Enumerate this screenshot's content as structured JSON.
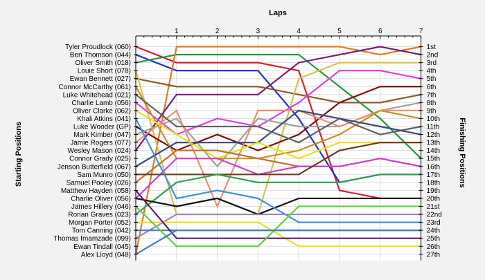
{
  "chart_data": {
    "type": "line",
    "title": "",
    "xlabel": "Laps",
    "ylabel_left": "Starting Positions",
    "ylabel_right": "Finishing Positions",
    "x": [
      0,
      1,
      2,
      3,
      4,
      5,
      6,
      7
    ],
    "x_tick_labels": [
      "1",
      "2",
      "3",
      "4",
      "5",
      "6",
      "7"
    ],
    "ylim": [
      1,
      27
    ],
    "y_inverted": true,
    "grid": true,
    "start_labels": [
      "Tyler Proudlock (060)",
      "Ben Thomson (044)",
      "Oliver Smith (018)",
      "Louie Short (078)",
      "Ewan Bennett (027)",
      "Connor McCarthy (061)",
      "Luke Whitehead (021)",
      "Charlie Lamb (056)",
      "Oliver Clarke (062)",
      "Khali Atkins (041)",
      "Luke Wooder (GP)",
      "Mark Kimber (047)",
      "Jamie Rogers (077)",
      "Wesley Mason (024)",
      "Connor Grady (025)",
      "Jenson Butterfield (067)",
      "Sam Munro (050)",
      "Samuel Pooley (026)",
      "Matthew Hayden (058)",
      "Charlie Oliver (056)",
      "James Hillery (046)",
      "Ronan Graves (023)",
      "Morgan Porter (052)",
      "Tom Canning (042)",
      "Thomas Imamzade (099)",
      "Ewan Tindall (045)",
      "Alex Lloyd (048)"
    ],
    "finish_labels": [
      "1st",
      "2nd",
      "3rd",
      "4th",
      "5th",
      "6th",
      "7th",
      "8th",
      "9th",
      "10th",
      "11th",
      "12th",
      "13th",
      "14th",
      "15th",
      "16th",
      "17th",
      "18th",
      "19th",
      "20th",
      "21st",
      "22nd",
      "23rd",
      "24th",
      "25th",
      "26th",
      "27th"
    ],
    "series": [
      {
        "color": "#d4202a",
        "positions": [
          1,
          3,
          3,
          3,
          4,
          19,
          20,
          20
        ]
      },
      {
        "color": "#2030c8",
        "positions": [
          2,
          4,
          4,
          4,
          10,
          18,
          17,
          17
        ]
      },
      {
        "color": "#1f9a3a",
        "positions": [
          3,
          2,
          2,
          2,
          2,
          6,
          10,
          15
        ]
      },
      {
        "color": "#e07a20",
        "positions": [
          27,
          1,
          1,
          1,
          1,
          1,
          2,
          1
        ]
      },
      {
        "color": "#7a1a7a",
        "positions": [
          14,
          7,
          7,
          7,
          3,
          2,
          1,
          2
        ]
      },
      {
        "color": "#8a5a2a",
        "positions": [
          5,
          6,
          6,
          6,
          7,
          8,
          8,
          7
        ]
      },
      {
        "color": "#d8c050",
        "positions": [
          4,
          22,
          22,
          22,
          5,
          3,
          3,
          3
        ]
      },
      {
        "color": "#e040e0",
        "positions": [
          8,
          12,
          10,
          11,
          8,
          4,
          4,
          5
        ]
      },
      {
        "color": "#7a1010",
        "positions": [
          11,
          14,
          12,
          14,
          12,
          8,
          6,
          6
        ]
      },
      {
        "color": "#a0a0a0",
        "positions": [
          12,
          10,
          16,
          10,
          11,
          11,
          9,
          8
        ]
      },
      {
        "color": "#e89070",
        "positions": [
          13,
          9,
          21,
          9,
          9,
          11,
          9,
          9
        ]
      },
      {
        "color": "#c89020",
        "positions": [
          6,
          15,
          15,
          15,
          14,
          12,
          9,
          10
        ]
      },
      {
        "color": "#606060",
        "positions": [
          7,
          11,
          11,
          11,
          13,
          10,
          12,
          11
        ]
      },
      {
        "color": "#3a4a7a",
        "positions": [
          16,
          13,
          13,
          13,
          9,
          10,
          11,
          12
        ]
      },
      {
        "color": "#e8e020",
        "positions": [
          9,
          12,
          15,
          13,
          15,
          13,
          13,
          13
        ]
      },
      {
        "color": "#c07030",
        "positions": [
          18,
          14,
          14,
          15,
          16,
          16,
          15,
          16
        ]
      },
      {
        "color": "#d040d0",
        "positions": [
          20,
          15,
          15,
          17,
          16,
          16,
          15,
          16
        ]
      },
      {
        "color": "#6a3a1a",
        "positions": [
          17,
          17,
          17,
          17,
          17,
          14,
          13,
          13
        ]
      },
      {
        "color": "#30a050",
        "positions": [
          22,
          18,
          17,
          18,
          18,
          18,
          17,
          17
        ]
      },
      {
        "color": "#101010",
        "positions": [
          20,
          21,
          20,
          22,
          20,
          20,
          20,
          20
        ]
      },
      {
        "color": "#4090e0",
        "positions": [
          10,
          20,
          19,
          20,
          23,
          23,
          23,
          23
        ]
      },
      {
        "color": "#a080c0",
        "positions": [
          25,
          22,
          22,
          22,
          22,
          22,
          22,
          22
        ]
      },
      {
        "color": "#e8e020",
        "positions": [
          23,
          23,
          23,
          23,
          26,
          26,
          26,
          26
        ]
      },
      {
        "color": "#4080c0",
        "positions": [
          24,
          24,
          24,
          24,
          24,
          24,
          24,
          24
        ]
      },
      {
        "color": "#5a1a7a",
        "positions": [
          19,
          25,
          25,
          25,
          25,
          25,
          25,
          25
        ]
      },
      {
        "color": "#60d040",
        "positions": [
          21,
          26,
          26,
          26,
          21,
          21,
          21,
          21
        ]
      },
      {
        "color": "#3a7ac8",
        "positions": [
          27,
          24,
          24,
          24,
          24,
          24,
          24,
          24
        ]
      }
    ]
  }
}
